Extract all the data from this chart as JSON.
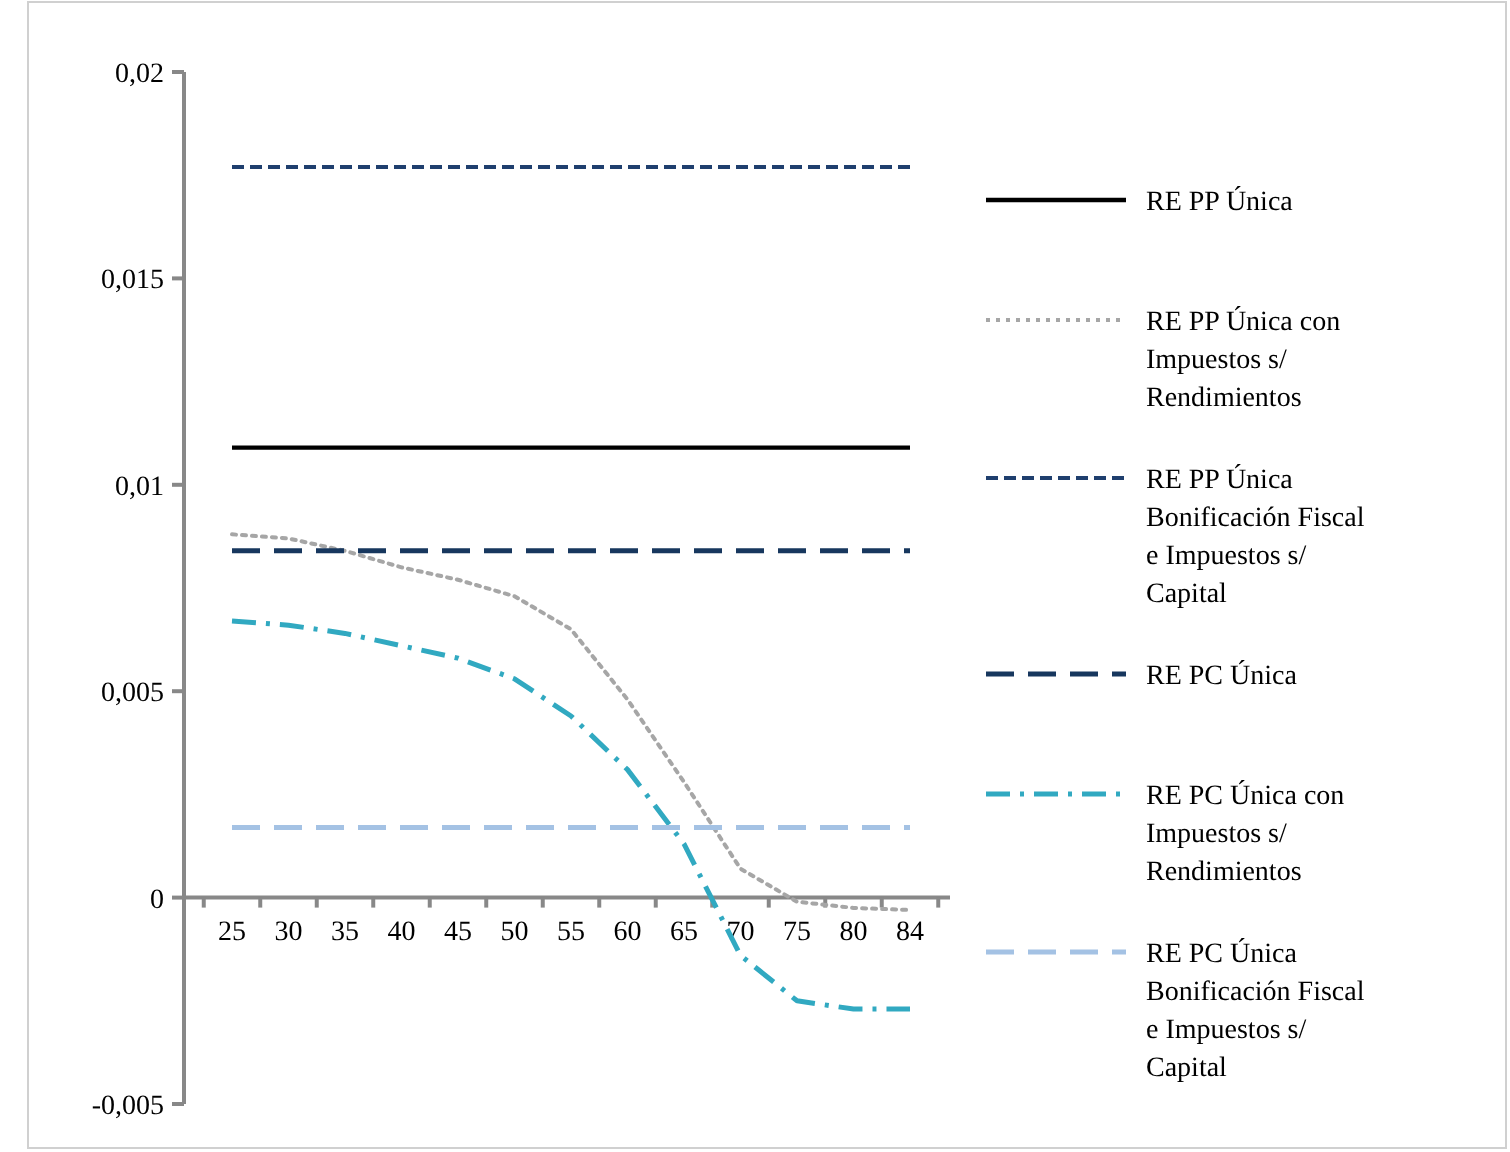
{
  "chart_data": {
    "type": "line",
    "categories": [
      "25",
      "30",
      "35",
      "40",
      "45",
      "50",
      "55",
      "60",
      "65",
      "70",
      "75",
      "80",
      "84"
    ],
    "series": [
      {
        "name": "RE PP Única",
        "color": "#000000",
        "line_style": "solid",
        "values": [
          0.0109,
          0.0109,
          0.0109,
          0.0109,
          0.0109,
          0.0109,
          0.0109,
          0.0109,
          0.0109,
          0.0109,
          0.0109,
          0.0109,
          0.0109
        ]
      },
      {
        "name": "RE PP Única con Impuestos s/ Rendimientos",
        "color": "#a6a6a6",
        "line_style": "dotted",
        "values": [
          0.0088,
          0.0087,
          0.0084,
          0.008,
          0.0077,
          0.0073,
          0.0065,
          0.0048,
          0.0028,
          0.0007,
          -0.0001,
          -0.00025,
          -0.0003
        ]
      },
      {
        "name": "RE PP Única Bonificación Fiscal e Impuestos s/ Capital",
        "color": "#1f3f6e",
        "line_style": "dashed",
        "values": [
          0.0177,
          0.0177,
          0.0177,
          0.0177,
          0.0177,
          0.0177,
          0.0177,
          0.0177,
          0.0177,
          0.0177,
          0.0177,
          0.0177,
          0.0177
        ]
      },
      {
        "name": "RE PC Única",
        "color": "#17375e",
        "line_style": "longdash",
        "values": [
          0.0084,
          0.0084,
          0.0084,
          0.0084,
          0.0084,
          0.0084,
          0.0084,
          0.0084,
          0.0084,
          0.0084,
          0.0084,
          0.0084,
          0.0084
        ]
      },
      {
        "name": "RE PC Única con Impuestos s/ Rendimientos",
        "color": "#31a9c1",
        "line_style": "dashdot",
        "values": [
          0.0067,
          0.0066,
          0.0064,
          0.0061,
          0.0058,
          0.0053,
          0.0044,
          0.0031,
          0.0013,
          -0.0014,
          -0.0025,
          -0.0027,
          -0.0027
        ]
      },
      {
        "name": "RE PC Única Bonificación Fiscal e Impuestos s/ Capital",
        "color": "#a4c2e4",
        "line_style": "longdash",
        "values": [
          0.0017,
          0.0017,
          0.0017,
          0.0017,
          0.0017,
          0.0017,
          0.0017,
          0.0017,
          0.0017,
          0.0017,
          0.0017,
          0.0017,
          0.0017
        ]
      }
    ],
    "ylim": [
      -0.005,
      0.02
    ],
    "yticks": [
      {
        "value": -0.005,
        "label": "-0,005"
      },
      {
        "value": 0,
        "label": "0"
      },
      {
        "value": 0.005,
        "label": "0,005"
      },
      {
        "value": 0.01,
        "label": "0,01"
      },
      {
        "value": 0.015,
        "label": "0,015"
      },
      {
        "value": 0.02,
        "label": "0,02"
      }
    ],
    "grid": false,
    "legend": "right",
    "marker": "none"
  }
}
